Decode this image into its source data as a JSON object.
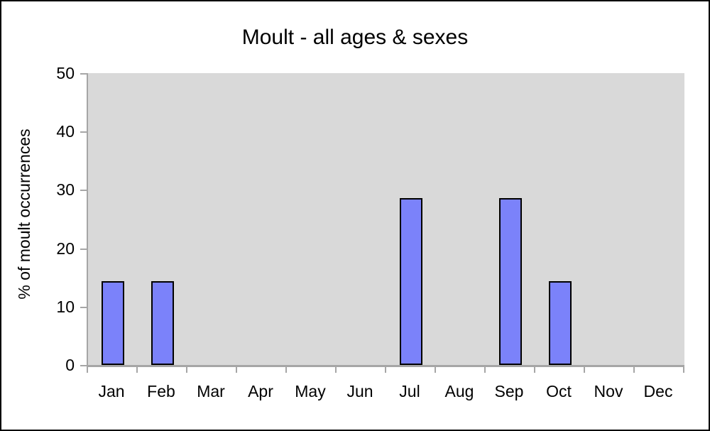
{
  "chart_data": {
    "type": "bar",
    "title": "Moult - all ages & sexes",
    "xlabel": "",
    "ylabel": "% of moult occurrences",
    "categories": [
      "Jan",
      "Feb",
      "Mar",
      "Apr",
      "May",
      "Jun",
      "Jul",
      "Aug",
      "Sep",
      "Oct",
      "Nov",
      "Dec"
    ],
    "values": [
      14.3,
      14.3,
      0,
      0,
      0,
      0,
      28.6,
      0,
      28.6,
      14.3,
      0,
      0
    ],
    "ylim": [
      0,
      50
    ],
    "yticks": [
      0,
      10,
      20,
      30,
      40,
      50
    ],
    "grid": false,
    "legend": "none",
    "colors": {
      "bar_fill": "#7b82fa",
      "bar_border": "#000000",
      "plot_background": "#d9d9d9",
      "axis_line": "#a6a6a6",
      "text": "#000000",
      "outer_border": "#000000",
      "page_background": "#ffffff"
    }
  }
}
